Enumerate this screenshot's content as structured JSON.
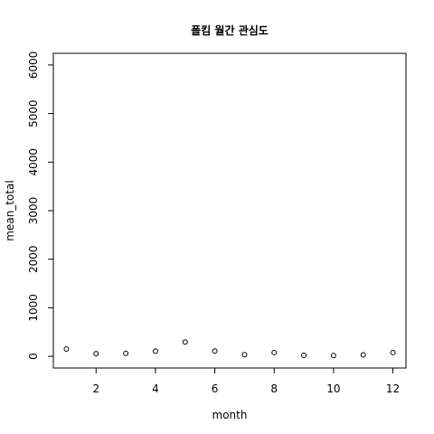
{
  "chart_data": {
    "type": "scatter",
    "title": "폴킴 월간 관심도",
    "xlabel": "month",
    "ylabel": "mean_total",
    "x": [
      1,
      2,
      3,
      4,
      5,
      6,
      7,
      8,
      9,
      10,
      11,
      12
    ],
    "y": [
      150,
      55,
      60,
      110,
      295,
      110,
      35,
      80,
      20,
      15,
      30,
      80
    ],
    "xlim": [
      0.56,
      12.44
    ],
    "ylim": [
      -240,
      6240
    ],
    "x_ticks": [
      2,
      4,
      6,
      8,
      10,
      12
    ],
    "y_ticks": [
      0,
      1000,
      2000,
      3000,
      4000,
      5000,
      6000
    ],
    "grid": false,
    "legend": "none",
    "marker": "open-circle",
    "colors": {
      "marker": "#000000",
      "frame": "#000000",
      "background": "#ffffff"
    }
  }
}
